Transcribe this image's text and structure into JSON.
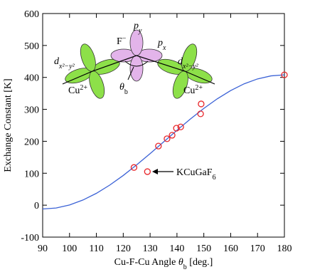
{
  "chart_data": {
    "type": "scatter",
    "xlabel": [
      {
        "t": "Cu-F-Cu Angle "
      },
      {
        "t": "θ",
        "i": true
      },
      {
        "t": "b",
        "sub": true
      },
      {
        "t": " [deg.]"
      }
    ],
    "ylabel": [
      {
        "t": "Exchange Constant [K]"
      }
    ],
    "xlim": [
      90,
      180
    ],
    "xticks": [
      90,
      100,
      110,
      120,
      130,
      140,
      150,
      160,
      170,
      180
    ],
    "ylim": [
      -100,
      600
    ],
    "yticks": [
      -100,
      0,
      100,
      200,
      300,
      400,
      500,
      600
    ],
    "series": [
      {
        "type": "line",
        "color": "#3b62d6",
        "x": [
          90,
          95,
          100,
          105,
          110,
          115,
          120,
          125,
          130,
          135,
          140,
          145,
          150,
          155,
          160,
          165,
          170,
          175,
          180
        ],
        "values": [
          -12,
          -8.8,
          0.7,
          16.1,
          37.1,
          63,
          93,
          126.2,
          161.5,
          198,
          234.5,
          269.8,
          303,
          333,
          358.9,
          379.9,
          395.3,
          404.8,
          408
        ]
      },
      {
        "type": "scatter",
        "color": "#e8262a",
        "x": [
          124,
          129,
          133.1,
          136.3,
          138.2,
          139.8,
          141.4,
          148.8,
          149,
          180
        ],
        "values": [
          118,
          105,
          185,
          208,
          219,
          241,
          245,
          286,
          317,
          408
        ]
      }
    ],
    "annotation": [
      {
        "t": "KCuGaF"
      },
      {
        "t": "6",
        "sub": true
      }
    ],
    "inset_labels": {
      "py": [
        {
          "t": "p",
          "i": true
        },
        {
          "t": "y",
          "sub": true,
          "i": true
        }
      ],
      "f": [
        {
          "t": "F"
        },
        {
          "t": "−",
          "sup": true
        }
      ],
      "px": [
        {
          "t": "p",
          "i": true
        },
        {
          "t": "x",
          "sub": true,
          "i": true
        }
      ],
      "d_left": [
        {
          "t": "d",
          "i": true
        },
        {
          "t": "x²−y²",
          "sub": true,
          "i": true
        }
      ],
      "d_right": [
        {
          "t": "d",
          "i": true
        },
        {
          "t": "x²−y²",
          "sub": true,
          "i": true
        }
      ],
      "cu_left": [
        {
          "t": "Cu"
        },
        {
          "t": "2+",
          "sup": true
        }
      ],
      "cu_right": [
        {
          "t": "Cu"
        },
        {
          "t": "2+",
          "sup": true
        }
      ],
      "theta": [
        {
          "t": "θ",
          "i": true
        },
        {
          "t": "b",
          "sub": true
        }
      ]
    }
  }
}
